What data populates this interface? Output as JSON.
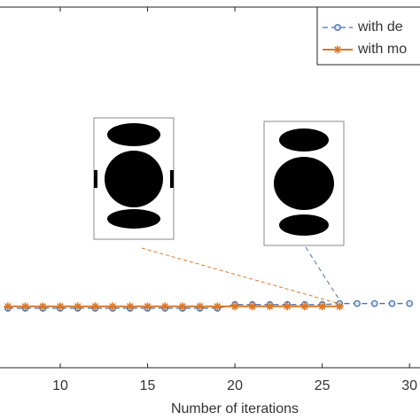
{
  "chart_data": {
    "type": "line",
    "xlabel": "Number of iterations",
    "x": [
      7,
      8,
      9,
      10,
      11,
      12,
      13,
      14,
      15,
      16,
      17,
      18,
      19,
      20,
      21,
      22,
      23,
      24,
      25,
      26,
      27,
      28,
      29,
      30
    ],
    "series": [
      {
        "name": "with de",
        "color": "#4a6fa5",
        "marker": "circle",
        "dash": true,
        "values": [
          0.165,
          0.165,
          0.165,
          0.165,
          0.165,
          0.165,
          0.165,
          0.165,
          0.165,
          0.165,
          0.165,
          0.165,
          0.165,
          0.175,
          0.175,
          0.175,
          0.175,
          0.175,
          0.175,
          0.178,
          0.178,
          0.178,
          0.178,
          0.178
        ]
      },
      {
        "name": "with mo",
        "color": "#d9792b",
        "marker": "star",
        "dash": false,
        "values": [
          0.17,
          0.17,
          0.17,
          0.17,
          0.17,
          0.17,
          0.17,
          0.17,
          0.17,
          0.17,
          0.17,
          0.17,
          0.17,
          0.17,
          0.17,
          0.17,
          0.17,
          0.17,
          0.17,
          0.17,
          null,
          null,
          null,
          null
        ]
      }
    ],
    "xlim": [
      6.55,
      30.6
    ],
    "ylim": [
      0,
      1
    ],
    "xticks": [
      10,
      15,
      20,
      25,
      30
    ],
    "legend": "upper-right"
  }
}
